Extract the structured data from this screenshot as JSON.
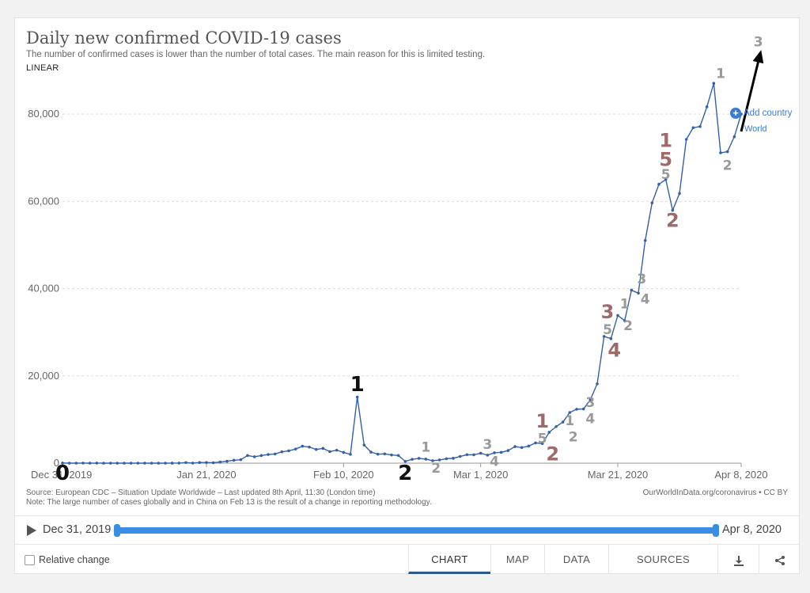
{
  "header": {
    "title": "Daily new confirmed COVID-19 cases",
    "subtitle": "The number of confirmed cases is lower than the number of total cases. The main reason for this is limited testing.",
    "scale": "LINEAR"
  },
  "add_country": "Add country",
  "series_label": "World",
  "source_lines": [
    "Source: European CDC – Situation Update Worldwide – Last updated 8th April, 11:30 (London time)",
    "Note: The large number of cases globally and in China on Feb 13 is the result of a change in reporting methodology."
  ],
  "owid": "OurWorldInData.org/coronavirus • CC BY",
  "timeline": {
    "start": "Dec 31, 2019",
    "end": "Apr 8, 2020"
  },
  "footer": {
    "relative_change": "Relative change",
    "tabs": [
      "CHART",
      "MAP",
      "DATA",
      "SOURCES"
    ],
    "active_tab": "CHART"
  },
  "chart_data": {
    "type": "line",
    "title": "Daily new confirmed COVID-19 cases",
    "xlabel": "",
    "ylabel": "",
    "ylim": [
      0,
      90000
    ],
    "yticks": [
      0,
      20000,
      40000,
      60000,
      80000
    ],
    "ytick_labels": [
      "0",
      "20,000",
      "40,000",
      "60,000",
      "80,000"
    ],
    "x_range_days": [
      0,
      99
    ],
    "xticks": [
      {
        "day": 0,
        "label": "Dec 31, 2019"
      },
      {
        "day": 21,
        "label": "Jan 21, 2020"
      },
      {
        "day": 41,
        "label": "Feb 10, 2020"
      },
      {
        "day": 61,
        "label": "Mar 1, 2020"
      },
      {
        "day": 81,
        "label": "Mar 21, 2020"
      },
      {
        "day": 99,
        "label": "Apr 8, 2020"
      }
    ],
    "grid": true,
    "series": [
      {
        "name": "World",
        "color": "#3360a9",
        "values": [
          27,
          0,
          0,
          17,
          0,
          15,
          0,
          0,
          0,
          0,
          0,
          0,
          1,
          0,
          0,
          1,
          4,
          17,
          136,
          19,
          151,
          140,
          97,
          259,
          441,
          665,
          787,
          1753,
          1466,
          1740,
          1980,
          2101,
          2590,
          2827,
          3235,
          3884,
          3694,
          3143,
          3385,
          2652,
          2973,
          2467,
          2015,
          15141,
          4156,
          2538,
          2059,
          2121,
          1877,
          1763,
          410,
          875,
          1108,
          916,
          564,
          743,
          1020,
          1121,
          1532,
          1941,
          1923,
          2276,
          1838,
          2371,
          2477,
          2891,
          3795,
          3576,
          3910,
          4641,
          4488,
          7073,
          8369,
          9427,
          11612,
          12363,
          12412,
          14566,
          18191,
          29046,
          28538,
          33856,
          32663,
          39654,
          38956,
          51025,
          59646,
          63926,
          65005,
          57959,
          61798,
          74210,
          76888,
          77156,
          81656,
          87061,
          71123,
          71386,
          74823,
          80000
        ]
      }
    ],
    "annotations": [
      {
        "text": "0",
        "day": 0,
        "y": -3800,
        "size": 26,
        "color": "#111"
      },
      {
        "text": "1",
        "day": 43,
        "y": 16500,
        "size": 26,
        "color": "#111"
      },
      {
        "text": "2",
        "day": 50,
        "y": -3800,
        "size": 26,
        "color": "#111"
      },
      {
        "text": "1",
        "day": 53,
        "y": 2600,
        "size": 17,
        "color": "#999"
      },
      {
        "text": "2",
        "day": 54.5,
        "y": -2200,
        "size": 17,
        "color": "#999"
      },
      {
        "text": "3",
        "day": 62,
        "y": 3300,
        "size": 17,
        "color": "#999"
      },
      {
        "text": "4",
        "day": 63,
        "y": -600,
        "size": 17,
        "color": "#999"
      },
      {
        "text": "1",
        "day": 70,
        "y": 8200,
        "size": 24,
        "color": "#9e6a6a"
      },
      {
        "text": "5",
        "day": 70,
        "y": 4600,
        "size": 17,
        "color": "#999"
      },
      {
        "text": "2",
        "day": 71.5,
        "y": 600,
        "size": 24,
        "color": "#9e6a6a"
      },
      {
        "text": "1",
        "day": 74,
        "y": 8700,
        "size": 17,
        "color": "#999"
      },
      {
        "text": "2",
        "day": 74.5,
        "y": 5000,
        "size": 17,
        "color": "#999"
      },
      {
        "text": "3",
        "day": 77,
        "y": 12900,
        "size": 17,
        "color": "#999"
      },
      {
        "text": "4",
        "day": 77,
        "y": 9200,
        "size": 17,
        "color": "#999"
      },
      {
        "text": "3",
        "day": 79.5,
        "y": 33200,
        "size": 24,
        "color": "#9e6a6a"
      },
      {
        "text": "5",
        "day": 79.5,
        "y": 29600,
        "size": 17,
        "color": "#999"
      },
      {
        "text": "4",
        "day": 80.5,
        "y": 24400,
        "size": 24,
        "color": "#9e6a6a"
      },
      {
        "text": "1",
        "day": 82,
        "y": 35500,
        "size": 17,
        "color": "#999"
      },
      {
        "text": "2",
        "day": 82.5,
        "y": 30500,
        "size": 17,
        "color": "#999"
      },
      {
        "text": "3",
        "day": 84.5,
        "y": 41200,
        "size": 17,
        "color": "#999"
      },
      {
        "text": "4",
        "day": 85,
        "y": 36600,
        "size": 17,
        "color": "#999"
      },
      {
        "text": "1",
        "day": 88,
        "y": 72500,
        "size": 24,
        "color": "#9e6a6a"
      },
      {
        "text": "5",
        "day": 88,
        "y": 68100,
        "size": 24,
        "color": "#9e6a6a"
      },
      {
        "text": "5",
        "day": 88,
        "y": 65100,
        "size": 17,
        "color": "#999"
      },
      {
        "text": "2",
        "day": 89,
        "y": 54200,
        "size": 24,
        "color": "#9e6a6a"
      },
      {
        "text": "1",
        "day": 96,
        "y": 88300,
        "size": 17,
        "color": "#999"
      },
      {
        "text": "2",
        "day": 97,
        "y": 67200,
        "size": 17,
        "color": "#999"
      },
      {
        "text": "3",
        "day": 101.5,
        "y": 95500,
        "size": 17,
        "color": "#999"
      }
    ],
    "arrow": {
      "from_day": 99,
      "from_y": 76000,
      "to_day": 101.8,
      "to_y": 94000
    }
  }
}
